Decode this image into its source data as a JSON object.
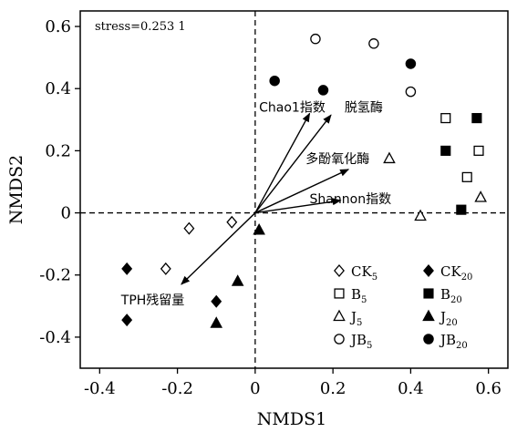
{
  "chart_data": {
    "type": "scatter",
    "xlabel": "NMDS1",
    "ylabel": "NMDS2",
    "xlim": [
      -0.45,
      0.65
    ],
    "ylim": [
      -0.5,
      0.65
    ],
    "x_ticks": [
      -0.4,
      -0.2,
      0,
      0.2,
      0.4,
      0.6
    ],
    "y_ticks": [
      -0.4,
      -0.2,
      0,
      0.2,
      0.4,
      0.6
    ],
    "x_tick_labels": [
      "-0.4",
      "-0.2",
      "0",
      "0.2",
      "0.4",
      "0.6"
    ],
    "y_tick_labels": [
      "-0.4",
      "-0.2",
      "0",
      "0.2",
      "0.4",
      "0.6"
    ],
    "stress_text": "stress=0.253 1",
    "grid": false,
    "reference_lines": {
      "x": 0,
      "y": 0,
      "style": "dashed"
    },
    "legend_position": "bottom-right",
    "series": [
      {
        "name": "CK",
        "sub": "5",
        "marker": "diamond-open",
        "points": [
          [
            -0.17,
            -0.05
          ],
          [
            -0.06,
            -0.03
          ],
          [
            -0.23,
            -0.18
          ]
        ]
      },
      {
        "name": "CK",
        "sub": "20",
        "marker": "diamond-filled",
        "points": [
          [
            -0.33,
            -0.18
          ],
          [
            -0.33,
            -0.345
          ],
          [
            -0.1,
            -0.285
          ]
        ]
      },
      {
        "name": "B",
        "sub": "5",
        "marker": "square-open",
        "points": [
          [
            0.49,
            0.305
          ],
          [
            0.575,
            0.2
          ],
          [
            0.545,
            0.115
          ]
        ]
      },
      {
        "name": "B",
        "sub": "20",
        "marker": "square-filled",
        "points": [
          [
            0.57,
            0.305
          ],
          [
            0.49,
            0.2
          ],
          [
            0.53,
            0.01
          ]
        ]
      },
      {
        "name": "J",
        "sub": "5",
        "marker": "triangle-open",
        "points": [
          [
            0.345,
            0.175
          ],
          [
            0.58,
            0.05
          ],
          [
            0.425,
            -0.01
          ]
        ]
      },
      {
        "name": "J",
        "sub": "20",
        "marker": "triangle-filled",
        "points": [
          [
            0.01,
            -0.055
          ],
          [
            -0.045,
            -0.22
          ],
          [
            -0.1,
            -0.355
          ]
        ]
      },
      {
        "name": "JB",
        "sub": "5",
        "marker": "circle-open",
        "points": [
          [
            0.155,
            0.56
          ],
          [
            0.305,
            0.545
          ],
          [
            0.4,
            0.39
          ]
        ]
      },
      {
        "name": "JB",
        "sub": "20",
        "marker": "circle-filled",
        "points": [
          [
            0.05,
            0.425
          ],
          [
            0.175,
            0.395
          ],
          [
            0.4,
            0.48
          ]
        ]
      }
    ],
    "vectors": [
      {
        "label": "Chao1指数",
        "x": 0.14,
        "y": 0.32
      },
      {
        "label": "脱氢酶",
        "x": 0.195,
        "y": 0.315
      },
      {
        "label": "多酚氧化酶",
        "x": 0.24,
        "y": 0.14
      },
      {
        "label": "Shannon指数",
        "x": 0.22,
        "y": 0.04
      },
      {
        "label": "TPH残留量",
        "x": -0.19,
        "y": -0.23
      }
    ]
  }
}
